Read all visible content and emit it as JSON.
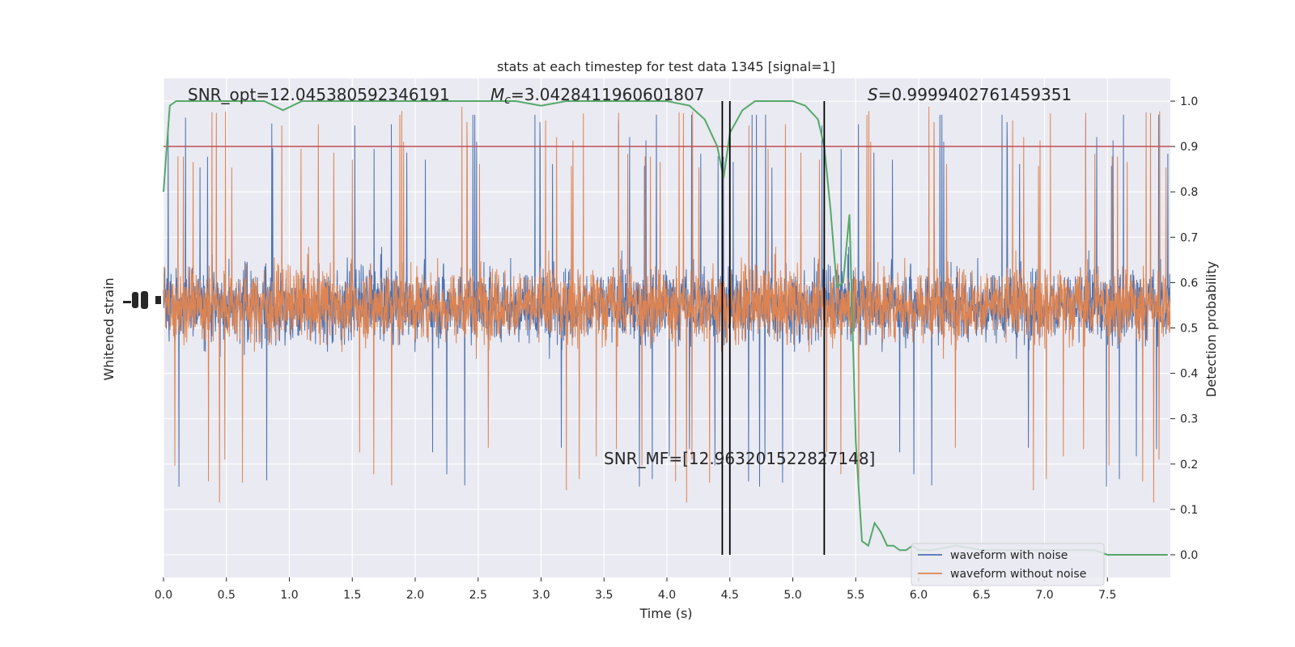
{
  "chart_data": {
    "type": "line",
    "title": "stats at each timestep for test data 1345 [signal=1]",
    "xlabel": "Time (s)",
    "ylabel_left": "Whitened strain",
    "ylabel_right": "Detection probability",
    "xlim": [
      0,
      8.0
    ],
    "ylim_right": [
      -0.05,
      1.05
    ],
    "x_ticks": [
      "0.0",
      "0.5",
      "1.0",
      "1.5",
      "2.0",
      "2.5",
      "3.0",
      "3.5",
      "4.0",
      "4.5",
      "5.0",
      "5.5",
      "6.0",
      "6.5",
      "7.0",
      "7.5"
    ],
    "x_tick_values": [
      0,
      0.5,
      1,
      1.5,
      2,
      2.5,
      3,
      3.5,
      4,
      4.5,
      5,
      5.5,
      6,
      6.5,
      7,
      7.5
    ],
    "y_right_ticks": [
      "0.0",
      "0.1",
      "0.2",
      "0.3",
      "0.4",
      "0.5",
      "0.6",
      "0.7",
      "0.8",
      "0.9",
      "1.0"
    ],
    "y_right_tick_values": [
      0,
      0.1,
      0.2,
      0.3,
      0.4,
      0.5,
      0.6,
      0.7,
      0.8,
      0.9,
      1.0
    ],
    "grid": true,
    "legend_position": "bottom-right",
    "annotations": {
      "snr_opt": "SNR_opt=12.045380592346191",
      "mc_symbol": "M",
      "mc_sub": "c",
      "mc_value": "=3.0428411960601807",
      "s_symbol": "S",
      "s_value": "=0.9999402761459351",
      "snr_mf": "SNR_MF=[12.963201522827148]"
    },
    "threshold": 0.9,
    "vertical_lines": [
      4.44,
      4.5,
      5.25
    ],
    "series": [
      {
        "name": "waveform with noise",
        "color": "#4c72b0",
        "noise_center": 0.55,
        "noise_range": [
          0.15,
          0.97
        ]
      },
      {
        "name": "waveform without noise",
        "color": "#dd8452",
        "noise_center": 0.55,
        "noise_range": [
          0.1,
          1.0
        ]
      },
      {
        "name": "",
        "color": "#55a868",
        "x": [
          0.0,
          0.05,
          0.1,
          0.2,
          0.4,
          0.6,
          0.8,
          0.95,
          1.1,
          1.4,
          1.7,
          1.8,
          2.0,
          2.4,
          2.8,
          3.0,
          3.2,
          3.6,
          4.0,
          4.18,
          4.3,
          4.4,
          4.45,
          4.5,
          4.6,
          4.65,
          4.7,
          4.8,
          5.0,
          5.1,
          5.2,
          5.25,
          5.3,
          5.35,
          5.4,
          5.45,
          5.5,
          5.55,
          5.6,
          5.65,
          5.7,
          5.75,
          5.8,
          5.85,
          5.9,
          5.95,
          6.0,
          6.1,
          6.3,
          6.5,
          6.8,
          7.0,
          7.2,
          7.4,
          7.5,
          7.6,
          7.8,
          7.98
        ],
        "y": [
          0.8,
          0.99,
          1.0,
          1.0,
          1.0,
          1.0,
          1.0,
          0.98,
          1.0,
          1.0,
          1.0,
          1.0,
          1.0,
          1.0,
          1.0,
          0.99,
          1.0,
          1.0,
          1.0,
          0.99,
          0.96,
          0.9,
          0.83,
          0.93,
          0.98,
          0.99,
          1.0,
          1.0,
          1.0,
          0.99,
          0.96,
          0.9,
          0.76,
          0.59,
          0.6,
          0.75,
          0.25,
          0.03,
          0.02,
          0.07,
          0.05,
          0.02,
          0.02,
          0.01,
          0.01,
          0.02,
          0.01,
          0.01,
          0.02,
          0.01,
          0.01,
          0.01,
          0.01,
          0.01,
          0.0,
          0.0,
          0.0,
          0.0
        ]
      }
    ]
  }
}
